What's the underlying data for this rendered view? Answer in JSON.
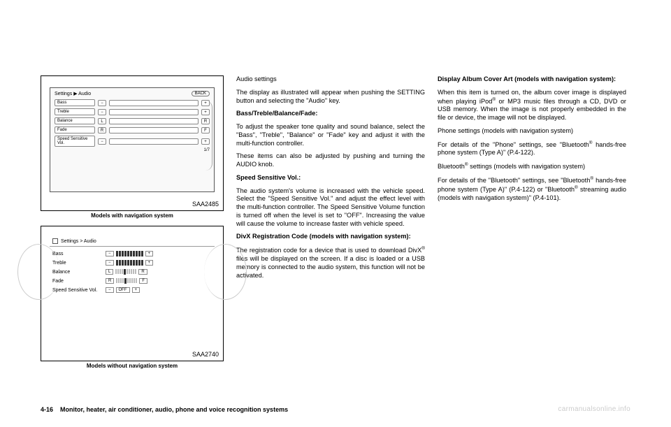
{
  "figures": {
    "f1": {
      "header": "Settings ▶ Audio",
      "back": "BACK",
      "rows": [
        {
          "label": "Bass",
          "l": "−",
          "r": "+"
        },
        {
          "label": "Treble",
          "l": "−",
          "r": "+"
        },
        {
          "label": "Balance",
          "l": "L",
          "r": "R"
        },
        {
          "label": "Fade",
          "l": "R",
          "r": "F"
        },
        {
          "label": "Speed Sensitive Vol.",
          "l": "−",
          "r": "+"
        }
      ],
      "page": "1/7",
      "code": "SAA2485",
      "caption": "Models with navigation system"
    },
    "f2": {
      "header": "Settings > Audio",
      "rows": [
        {
          "label": "Bass",
          "l": "−",
          "r": "+"
        },
        {
          "label": "Treble",
          "l": "−",
          "r": "+"
        },
        {
          "label": "Balance",
          "l": "L",
          "r": "R"
        },
        {
          "label": "Fade",
          "l": "R",
          "r": "F"
        },
        {
          "label": "Speed Sensitive Vol.",
          "l": "−",
          "mid": "OFF",
          "r": "+"
        }
      ],
      "code": "SAA2740",
      "caption": "Models without navigation system"
    }
  },
  "col2": {
    "h1": "Audio settings",
    "p1": "The display as illustrated will appear when pushing the SETTING button and selecting the \"Audio\" key.",
    "h2": "Bass/Treble/Balance/Fade:",
    "p2": "To adjust the speaker tone quality and sound balance, select the \"Bass\", \"Treble\", \"Balance\" or \"Fade\" key and adjust it with the multi-function controller.",
    "p3": "These items can also be adjusted by pushing and turning the AUDIO knob.",
    "h3": "Speed Sensitive Vol.:",
    "p4": "The audio system's volume is increased with the vehicle speed. Select the \"Speed Sensitive Vol.\" and adjust the effect level with the multi-function controller. The Speed Sensitive Volume function is turned off when the level is set to \"OFF\". Increasing the value will cause the volume to increase faster with vehicle speed.",
    "h4": "DivX Registration Code (models with navigation system):",
    "p5a": "The registration code for a device that is used to download DivX",
    "p5b": " files will be displayed on the screen. If a disc is loaded or a USB memory is connected to the audio system, this function will not be activated."
  },
  "col3": {
    "h1": "Display Album Cover Art (models with navigation system):",
    "p1a": "When this item is turned on, the album cover image is displayed when playing iPod",
    "p1b": " or MP3 music files through a CD, DVD or USB memory. When the image is not properly embedded in the file or device, the image will not be displayed.",
    "h2": "Phone settings (models with navigation system)",
    "p2a": "For details of the \"Phone\" settings, see \"Bluetooth",
    "p2b": " hands-free phone system (Type A)\" (P.4-122).",
    "h3a": "Bluetooth",
    "h3b": " settings (models with navigation system)",
    "p3a": "For details of the \"Bluetooth\" settings, see \"Bluetooth",
    "p3b": " hands-free phone system (Type A)\" (P.4-122) or \"Bluetooth",
    "p3c": " streaming audio (models with navigation system)\" (P.4-101)."
  },
  "footer": {
    "pagenum": "4-16",
    "section": "Monitor, heater, air conditioner, audio, phone and voice recognition systems"
  },
  "watermark": "carmanualsonline.info",
  "reg": "®"
}
